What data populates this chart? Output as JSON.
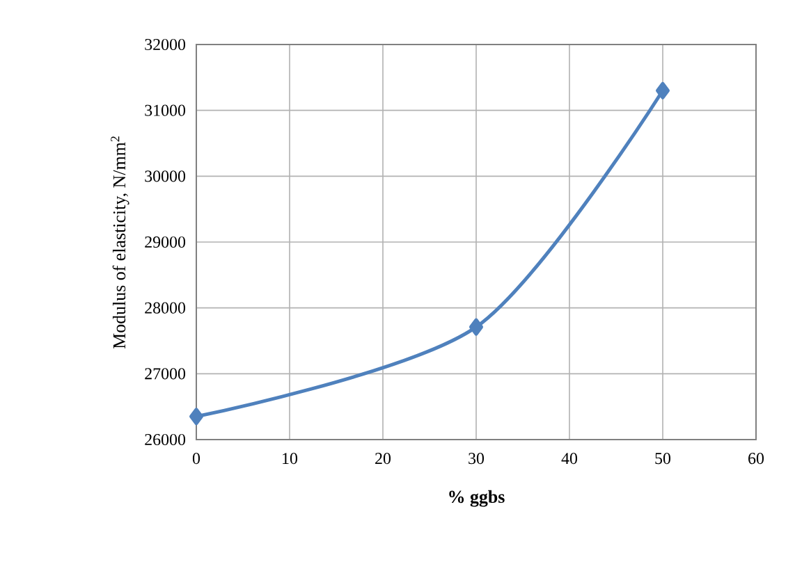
{
  "chart_data": {
    "type": "line",
    "xlabel": "% ggbs",
    "ylabel": "Modulus of elasticity, N/mm$^{2}$",
    "x": [
      0,
      30,
      50
    ],
    "series": [
      {
        "color": "#4f81bd",
        "values": [
          26350,
          27710,
          31300
        ]
      }
    ],
    "xlim": [
      0,
      60
    ],
    "xticks": [
      0,
      10,
      20,
      30,
      40,
      50,
      60
    ],
    "ylim": [
      26000,
      32000
    ],
    "yticks": [
      26000,
      27000,
      28000,
      29000,
      30000,
      31000,
      32000
    ],
    "grid": true,
    "marker": "diamond",
    "line_style": "solid"
  }
}
